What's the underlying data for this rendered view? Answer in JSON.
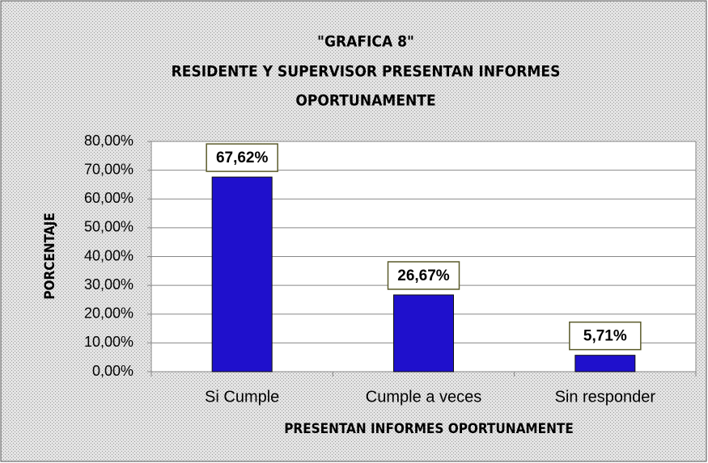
{
  "chart_data": {
    "type": "bar",
    "title": [
      "\"GRAFICA 8\"",
      "RESIDENTE Y SUPERVISOR PRESENTAN INFORMES",
      "OPORTUNAMENTE"
    ],
    "x_label": "PRESENTAN INFORMES OPORTUNAMENTE",
    "y_label": "PORCENTAJE",
    "categories": [
      "Si Cumple",
      "Cumple a veces",
      "Sin responder"
    ],
    "values": [
      67.62,
      26.67,
      5.71
    ],
    "value_labels": [
      "67,62%",
      "26,67%",
      "5,71%"
    ],
    "color": "#1f10cc",
    "ylim": [
      0,
      80
    ],
    "yticks": [
      {
        "value": 0,
        "label": "0,00%"
      },
      {
        "value": 10,
        "label": "10,00%"
      },
      {
        "value": 20,
        "label": "20,00%"
      },
      {
        "value": 30,
        "label": "30,00%"
      },
      {
        "value": 40,
        "label": "40,00%"
      },
      {
        "value": 50,
        "label": "50,00%"
      },
      {
        "value": 60,
        "label": "60,00%"
      },
      {
        "value": 70,
        "label": "70,00%"
      },
      {
        "value": 80,
        "label": "80,00%"
      }
    ],
    "grid": true
  }
}
